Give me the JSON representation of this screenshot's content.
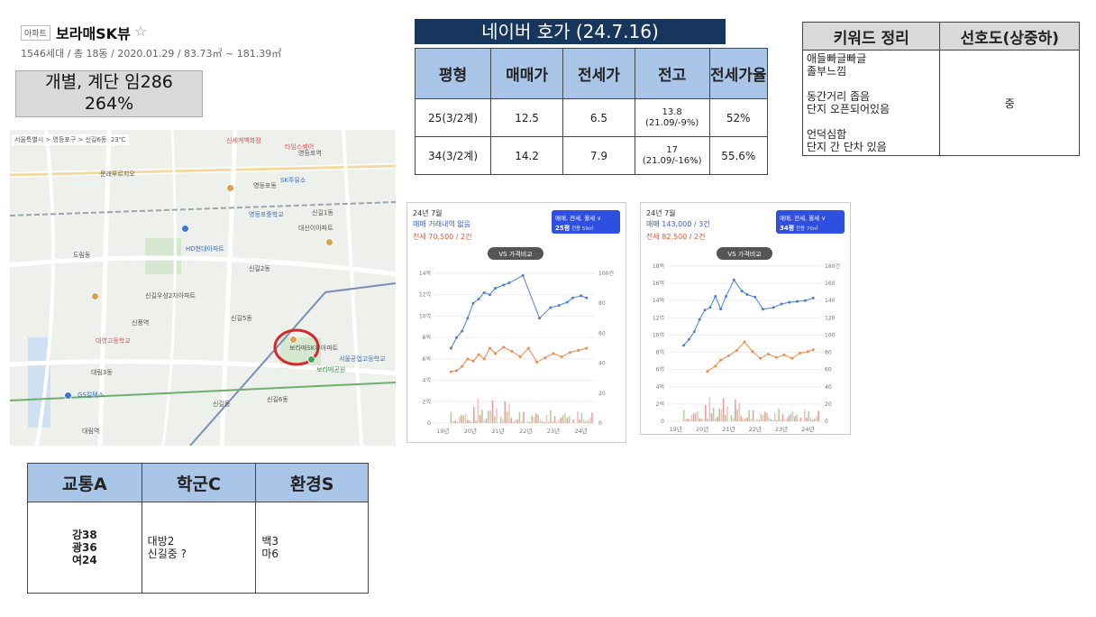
{
  "header": {
    "badge": "아파트",
    "name": "보라매SK뷰",
    "star": "☆",
    "meta": "1546세대 / 총 18동 / 2020.01.29 / 83.73㎡ ~ 181.39㎡"
  },
  "summary": {
    "line1": "개별, 계단 임286",
    "line2": "264%"
  },
  "map": {
    "breadcrumb": "서울특별시 > 영등포구 > 신길6동",
    "weather": "23℃",
    "labels": [
      {
        "t": "신세계백화점",
        "c": "red"
      },
      {
        "t": "타임스퀘어",
        "c": "red"
      },
      {
        "t": "영등포역",
        "c": ""
      },
      {
        "t": "문래푸르지오",
        "c": ""
      },
      {
        "t": "영등포동",
        "c": ""
      },
      {
        "t": "SK주유소",
        "c": "blue"
      },
      {
        "t": "신길1동",
        "c": ""
      },
      {
        "t": "대신이아파트",
        "c": ""
      },
      {
        "t": "HD현대아파트",
        "c": "blue"
      },
      {
        "t": "영등포중학교",
        "c": "blue"
      },
      {
        "t": "도림동",
        "c": ""
      },
      {
        "t": "신길2동",
        "c": ""
      },
      {
        "t": "신길우성2차아파트",
        "c": ""
      },
      {
        "t": "보라매SK뷰아파트",
        "c": ""
      },
      {
        "t": "대영고등학교",
        "c": "red"
      },
      {
        "t": "신풍역",
        "c": ""
      },
      {
        "t": "신길5동",
        "c": ""
      },
      {
        "t": "대림3동",
        "c": ""
      },
      {
        "t": "신길6동",
        "c": ""
      },
      {
        "t": "보라매공원",
        "c": "green"
      },
      {
        "t": "서울공업고등학교",
        "c": "blue"
      },
      {
        "t": "대림역",
        "c": ""
      },
      {
        "t": "GS칼텍스",
        "c": "blue"
      },
      {
        "t": "신길동",
        "c": ""
      }
    ]
  },
  "naver": {
    "title": "네이버 호가 (24.7.16)",
    "headers": [
      "평형",
      "매매가",
      "전세가",
      "전고",
      "전세가율"
    ],
    "rows": [
      {
        "type": "25(3/2계)",
        "sale": "12.5",
        "jeonse": "6.5",
        "peak_top": "13.8",
        "peak_bottom": "(21.09/-9%)",
        "ratio": "52%"
      },
      {
        "type": "34(3/2계)",
        "sale": "14.2",
        "jeonse": "7.9",
        "peak_top": "17",
        "peak_bottom": "(21.09/-16%)",
        "ratio": "55.6%"
      }
    ]
  },
  "keywords": {
    "headers": [
      "키워드 정리",
      "선호도(상중하)"
    ],
    "lines": [
      "애들빠글빠글",
      "졸부느낌",
      "",
      "동간거리 좁음",
      "단지 오픈되어있음",
      "",
      "언덕심함",
      "단지 간 단차 있음"
    ],
    "preference": "중"
  },
  "chart_data": [
    {
      "type": "line",
      "title": "24년 7월",
      "sale_text": "매매 거래내역 없음",
      "jeonse_text": "전세 70,500 / 2건",
      "selector": "매매, 전세, 월세",
      "size_label": "25평",
      "size_sub": "전용 59㎡",
      "compare_button": "VS 가격비교",
      "y_left_ticks": [
        "14억",
        "12억",
        "10억",
        "8억",
        "6억",
        "4억",
        "2억",
        "0"
      ],
      "y_right_ticks": [
        "100건",
        "80",
        "60",
        "40",
        "20",
        "0"
      ],
      "x_ticks": [
        "19년",
        "20년",
        "21년",
        "22년",
        "23년",
        "24년"
      ],
      "ylim": [
        0,
        14
      ],
      "series": [
        {
          "name": "매매",
          "color": "#4a7fd9",
          "x": [
            2019.6,
            2019.8,
            2020.0,
            2020.2,
            2020.4,
            2020.6,
            2020.8,
            2021.0,
            2021.2,
            2021.5,
            2021.7,
            2022.2,
            2022.8,
            2023.2,
            2023.5,
            2023.8,
            2024.0,
            2024.3,
            2024.5
          ],
          "values": [
            7.0,
            8.0,
            8.6,
            9.8,
            11.2,
            11.6,
            12.2,
            12.0,
            12.6,
            12.9,
            13.1,
            13.8,
            9.8,
            10.8,
            11.0,
            11.3,
            11.7,
            11.9,
            11.7
          ]
        },
        {
          "name": "전세",
          "color": "#f08a4b",
          "x": [
            2019.6,
            2019.8,
            2020.0,
            2020.2,
            2020.4,
            2020.6,
            2020.8,
            2021.0,
            2021.2,
            2021.5,
            2021.8,
            2022.1,
            2022.4,
            2022.7,
            2023.0,
            2023.3,
            2023.6,
            2023.9,
            2024.2,
            2024.5
          ],
          "values": [
            4.8,
            4.9,
            5.3,
            6.0,
            5.8,
            6.4,
            6.0,
            7.0,
            6.5,
            7.1,
            6.7,
            6.2,
            7.0,
            5.7,
            6.1,
            6.5,
            6.2,
            6.6,
            6.8,
            7.0
          ]
        }
      ]
    },
    {
      "type": "line",
      "title": "24년 7월",
      "sale_text": "매매 143,000 / 3건",
      "jeonse_text": "전세 82,500 / 2건",
      "selector": "매매, 전세, 월세",
      "size_label": "34평",
      "size_sub": "전용 70㎡",
      "compare_button": "VS 가격비교",
      "y_left_ticks": [
        "18억",
        "16억",
        "14억",
        "12억",
        "10억",
        "8억",
        "6억",
        "4억",
        "2억",
        "0"
      ],
      "y_right_ticks": [
        "180건",
        "160",
        "140",
        "120",
        "100",
        "80",
        "60",
        "40",
        "20",
        "0"
      ],
      "x_ticks": [
        "19년",
        "20년",
        "21년",
        "22년",
        "23년",
        "24년"
      ],
      "ylim": [
        0,
        18
      ],
      "series": [
        {
          "name": "매매",
          "color": "#4a7fd9",
          "x": [
            2019.6,
            2019.8,
            2020.0,
            2020.2,
            2020.4,
            2020.6,
            2020.8,
            2021.0,
            2021.2,
            2021.5,
            2021.8,
            2022.0,
            2022.3,
            2022.6,
            2023.0,
            2023.3,
            2023.6,
            2023.9,
            2024.2,
            2024.5
          ],
          "values": [
            8.8,
            9.5,
            10.4,
            11.8,
            12.9,
            13.2,
            14.5,
            13.0,
            14.5,
            16.4,
            15.1,
            14.7,
            14.4,
            13.0,
            13.2,
            13.6,
            13.8,
            13.9,
            14.0,
            14.3
          ]
        },
        {
          "name": "전세",
          "color": "#f08a4b",
          "x": [
            2020.5,
            2020.8,
            2021.0,
            2021.3,
            2021.6,
            2021.9,
            2022.2,
            2022.5,
            2022.8,
            2023.1,
            2023.4,
            2023.7,
            2024.0,
            2024.3,
            2024.5
          ],
          "values": [
            5.8,
            6.4,
            7.1,
            7.6,
            8.2,
            9.2,
            8.1,
            7.3,
            7.8,
            7.4,
            7.7,
            7.3,
            7.9,
            8.1,
            8.3
          ]
        }
      ]
    }
  ],
  "transport": {
    "headers": [
      "교통A",
      "학군C",
      "환경S"
    ],
    "col1": [
      "강38",
      "광36",
      "여24"
    ],
    "col2": [
      "대방2",
      "신길중 ?"
    ],
    "col3": [
      "백3",
      "마6"
    ]
  }
}
